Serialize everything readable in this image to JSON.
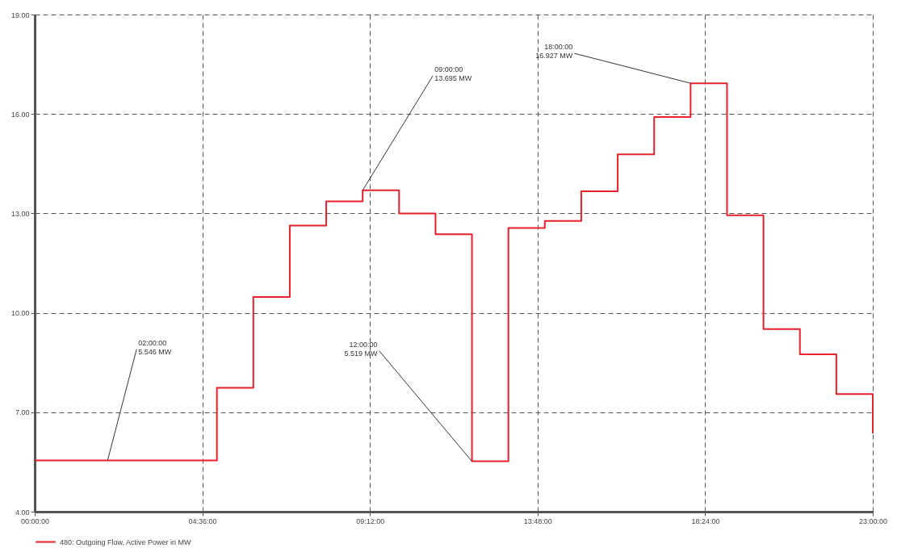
{
  "chart_data": {
    "type": "step",
    "x": [
      0,
      1,
      2,
      3,
      4,
      5,
      6,
      7,
      8,
      9,
      10,
      11,
      12,
      13,
      14,
      15,
      16,
      17,
      18,
      19,
      20,
      21,
      22,
      23
    ],
    "series": [
      {
        "name": "480: Outgoing Flow, Active Power in MW",
        "color": "#e8202a",
        "values": [
          5.546,
          5.546,
          5.546,
          5.546,
          5.546,
          7.74,
          10.48,
          12.63,
          13.36,
          13.695,
          13.0,
          12.37,
          5.519,
          12.56,
          12.77,
          13.67,
          14.78,
          15.91,
          16.927,
          12.94,
          9.51,
          8.75,
          7.55,
          6.36
        ]
      }
    ],
    "xlim": [
      0,
      23
    ],
    "xticks": [
      {
        "value": 0,
        "label": "00:00:00"
      },
      {
        "value": 4.6,
        "label": "04:36:00"
      },
      {
        "value": 9.2,
        "label": "09:12:00"
      },
      {
        "value": 13.8,
        "label": "13:48:00"
      },
      {
        "value": 18.4,
        "label": "18:24:00"
      },
      {
        "value": 23,
        "label": "23:00:00"
      }
    ],
    "ylim": [
      4,
      19
    ],
    "yticks": [
      {
        "value": 4,
        "label": "4.00"
      },
      {
        "value": 7,
        "label": "7.00"
      },
      {
        "value": 10,
        "label": "10.00"
      },
      {
        "value": 13,
        "label": "13.00"
      },
      {
        "value": 16,
        "label": "16.00"
      },
      {
        "value": 19,
        "label": "19.00"
      }
    ],
    "grid": true,
    "legend": "bottom",
    "line_style": "solid",
    "annotations": [
      {
        "text": "02:00:00\n5.546 MW",
        "x": 2,
        "y": 5.546
      },
      {
        "text": "09:00:00\n13.695 MW",
        "x": 9,
        "y": 13.695
      },
      {
        "text": "12:00:00\n5.519 MW",
        "x": 12,
        "y": 5.519
      },
      {
        "text": "18:00:00\n16.927 MW",
        "x": 18,
        "y": 16.927
      }
    ]
  }
}
